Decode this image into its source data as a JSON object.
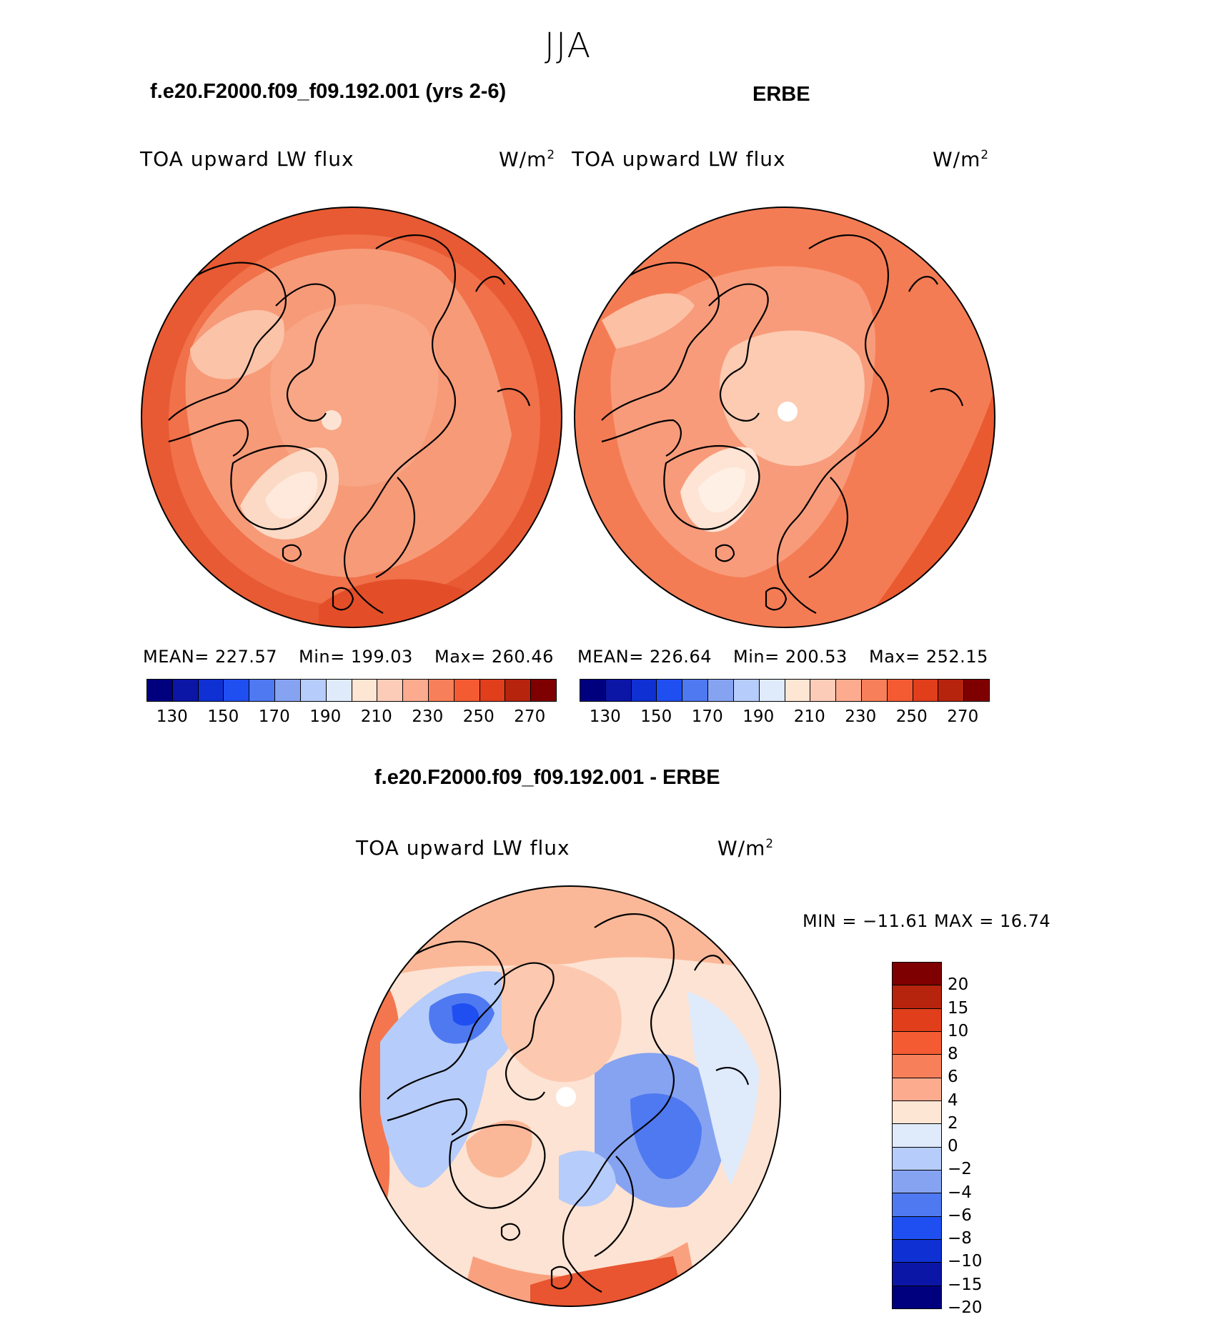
{
  "figure": {
    "season": "JJA",
    "units_main": "W/m",
    "units_exp": "2"
  },
  "panel_model": {
    "title": "f.e20.F2000.f09_f09.192.001 (yrs 2-6)",
    "variable": "TOA upward LW flux",
    "mean_label": "MEAN=",
    "mean_value": "227.57",
    "min_label": "Min=",
    "min_value": "199.03",
    "max_label": "Max=",
    "max_value": "260.46",
    "base_color": "#f0714a"
  },
  "panel_obs": {
    "title": "ERBE",
    "variable": "TOA upward LW flux",
    "mean_label": "MEAN=",
    "mean_value": "226.64",
    "min_label": "Min=",
    "min_value": "200.53",
    "max_label": "Max=",
    "max_value": "252.15",
    "base_color": "#f47c54"
  },
  "panel_diff": {
    "title": "f.e20.F2000.f09_f09.192.001 - ERBE",
    "variable": "TOA upward LW flux",
    "minmax_text": "MIN = −11.61 MAX =   16.74",
    "base_color": "#fde3d3"
  },
  "chart_data": [
    {
      "type": "heatmap",
      "title": "f.e20.F2000.f09_f09.192.001 (yrs 2-6)",
      "subtitle": "TOA upward LW flux",
      "units": "W/m2",
      "projection": "north polar stereographic",
      "stats": {
        "mean": 227.57,
        "min": 199.03,
        "max": 260.46
      },
      "colorbar": {
        "levels": [
          120,
          130,
          140,
          150,
          160,
          170,
          180,
          190,
          200,
          210,
          220,
          230,
          240,
          250,
          260,
          270,
          280
        ],
        "tick_labels": [
          "130",
          "150",
          "170",
          "190",
          "210",
          "230",
          "250",
          "270"
        ],
        "colors": [
          "#00007f",
          "#0b16a6",
          "#0f30d3",
          "#1f4ff0",
          "#4f79f0",
          "#86a3f2",
          "#b6ccfa",
          "#dfeafb",
          "#fee6d4",
          "#fdccb8",
          "#fcab8f",
          "#f7805a",
          "#f45b33",
          "#e13e1c",
          "#b6240e",
          "#7f0000"
        ]
      }
    },
    {
      "type": "heatmap",
      "title": "ERBE",
      "subtitle": "TOA upward LW flux",
      "units": "W/m2",
      "projection": "north polar stereographic",
      "stats": {
        "mean": 226.64,
        "min": 200.53,
        "max": 252.15
      },
      "colorbar": {
        "levels": [
          120,
          130,
          140,
          150,
          160,
          170,
          180,
          190,
          200,
          210,
          220,
          230,
          240,
          250,
          260,
          270,
          280
        ],
        "tick_labels": [
          "130",
          "150",
          "170",
          "190",
          "210",
          "230",
          "250",
          "270"
        ],
        "colors": [
          "#00007f",
          "#0b16a6",
          "#0f30d3",
          "#1f4ff0",
          "#4f79f0",
          "#86a3f2",
          "#b6ccfa",
          "#dfeafb",
          "#fee6d4",
          "#fdccb8",
          "#fcab8f",
          "#f7805a",
          "#f45b33",
          "#e13e1c",
          "#b6240e",
          "#7f0000"
        ]
      }
    },
    {
      "type": "heatmap",
      "title": "f.e20.F2000.f09_f09.192.001 - ERBE",
      "subtitle": "TOA upward LW flux",
      "units": "W/m2",
      "projection": "north polar stereographic",
      "stats": {
        "min": -11.61,
        "max": 16.74
      },
      "colorbar": {
        "tick_labels": [
          "20",
          "15",
          "10",
          "8",
          "6",
          "4",
          "2",
          "0",
          "−2",
          "−4",
          "−6",
          "−8",
          "−10",
          "−15",
          "−20"
        ],
        "colors_top_to_bottom": [
          "#7f0000",
          "#b6240e",
          "#e13e1c",
          "#f45b33",
          "#f7805a",
          "#fcab8f",
          "#fee6d4",
          "#dfeafb",
          "#b6ccfa",
          "#86a3f2",
          "#4f79f0",
          "#1f4ff0",
          "#0f30d3",
          "#0b16a6",
          "#00007f"
        ]
      }
    }
  ]
}
